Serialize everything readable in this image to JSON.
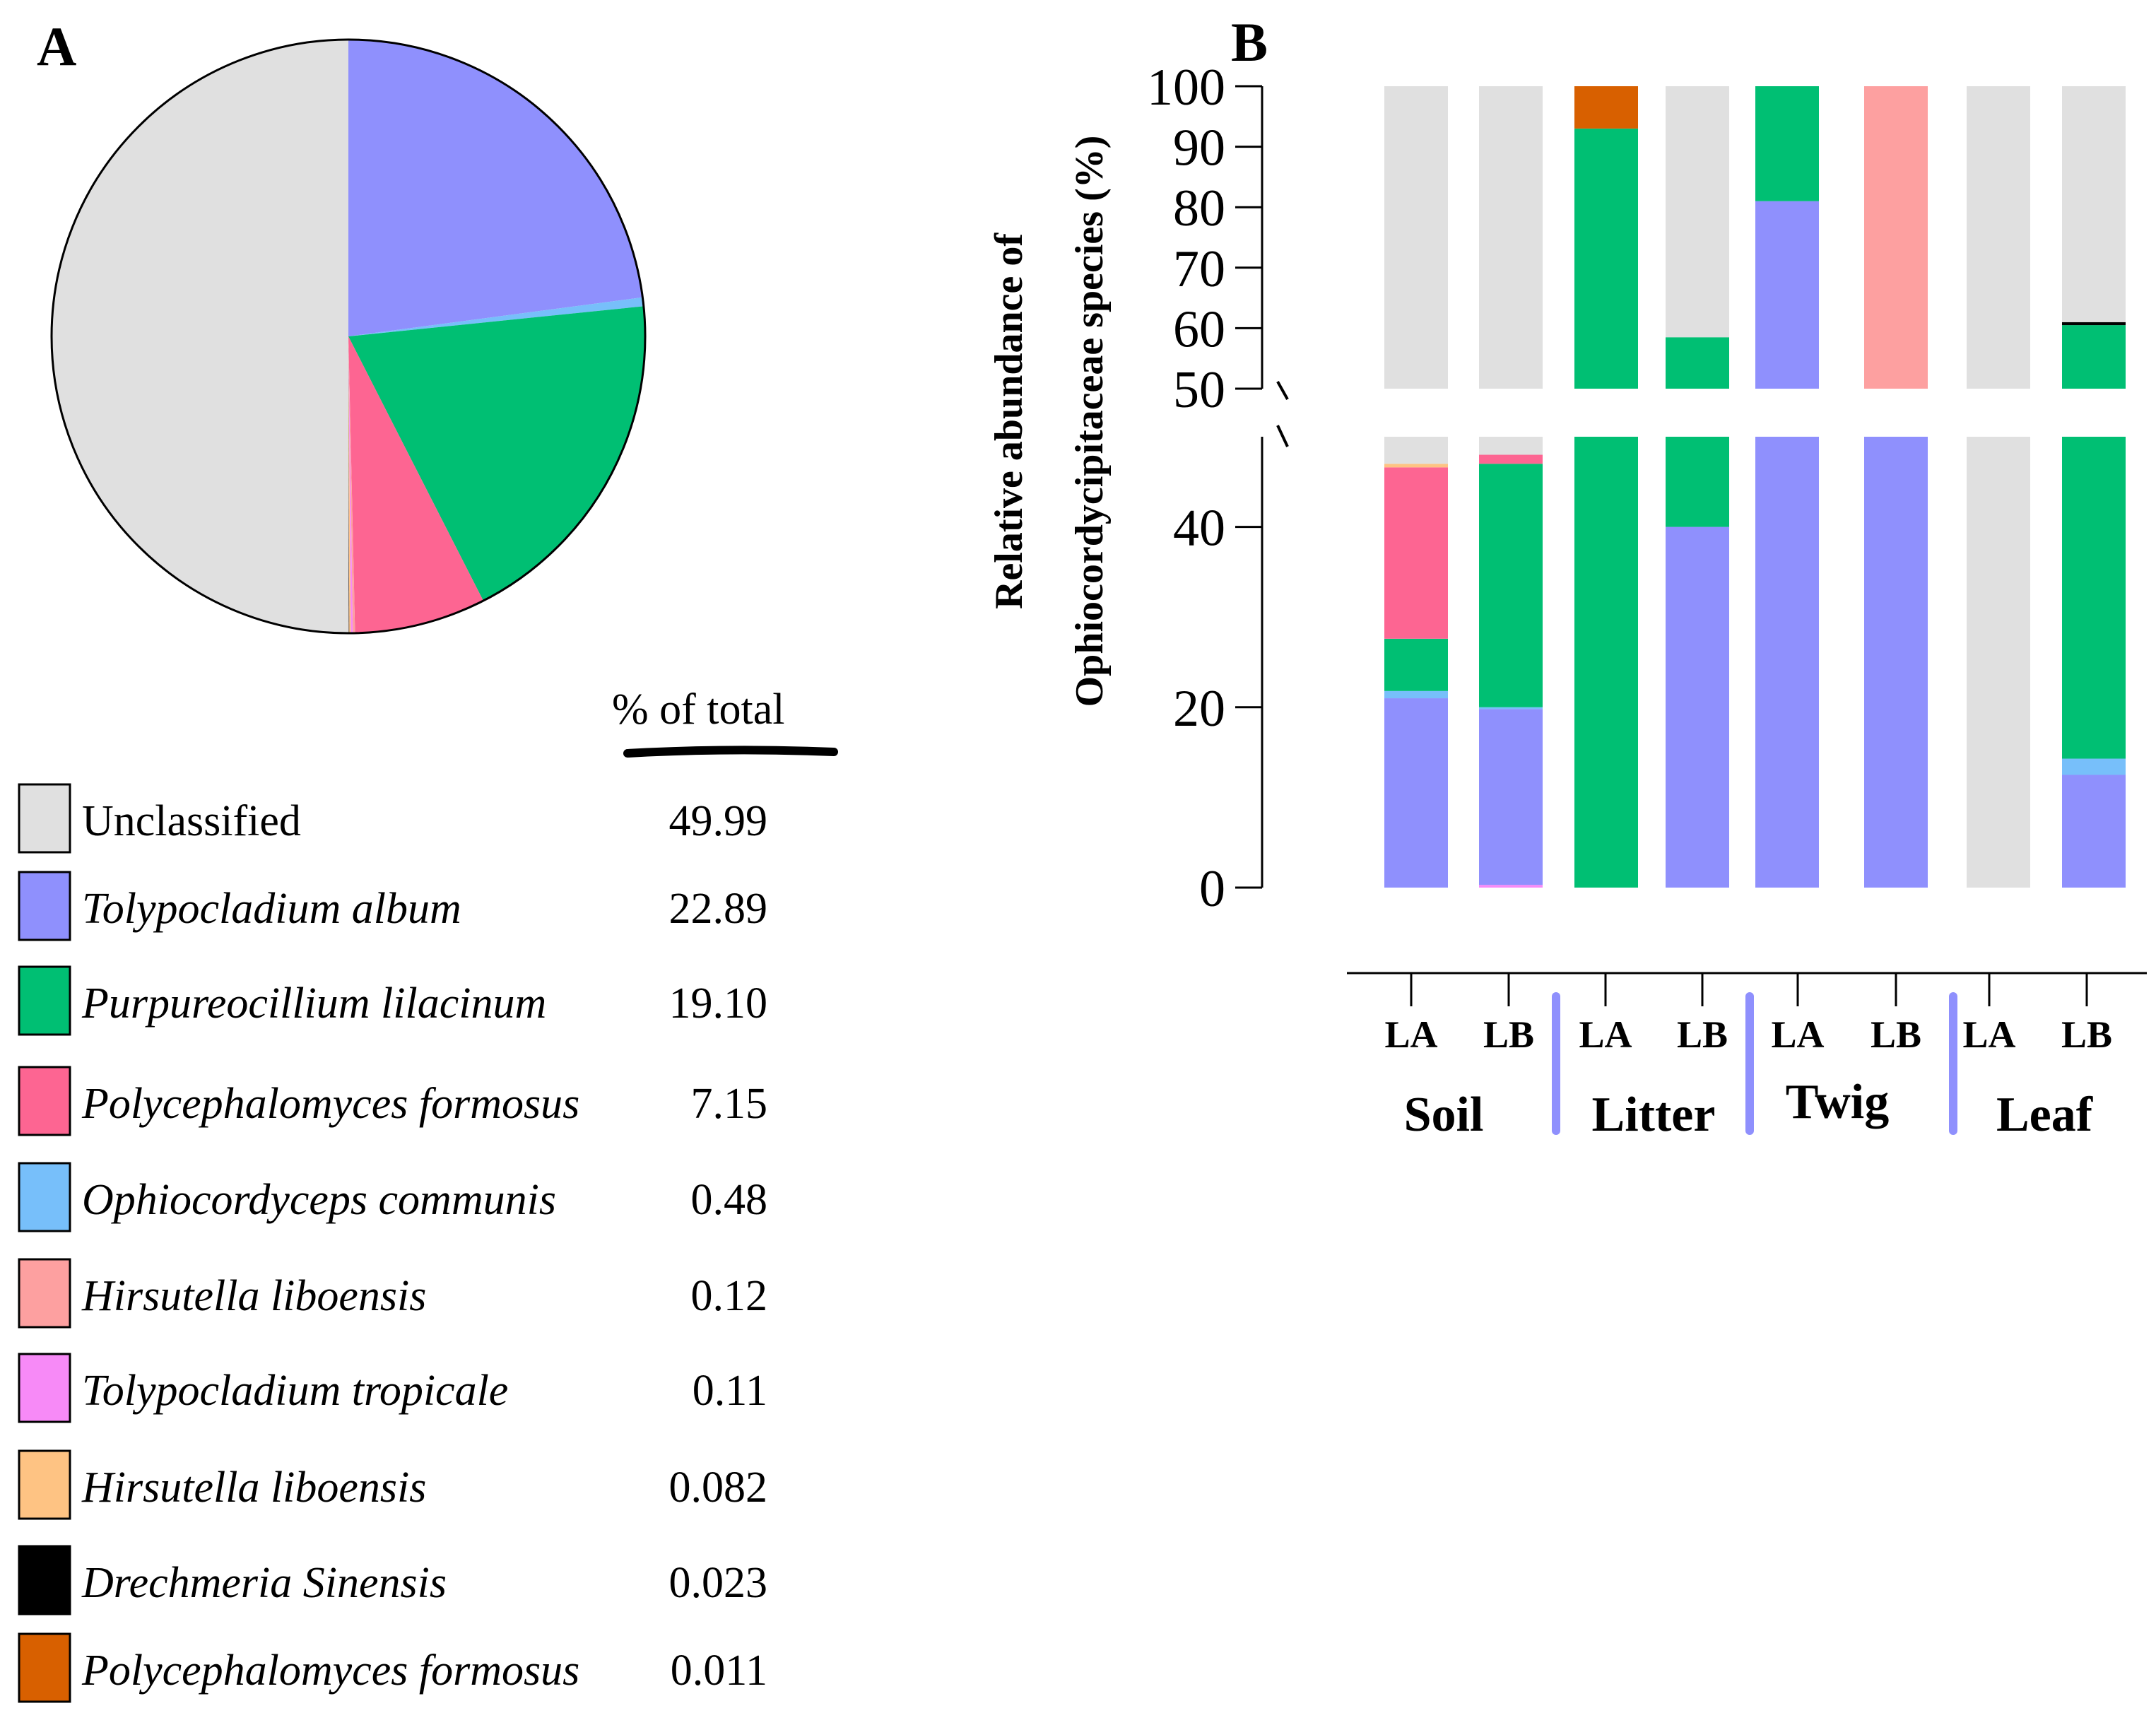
{
  "panels": {
    "a_label": "A",
    "b_label": "B"
  },
  "legend": {
    "header": "% of  total",
    "items": [
      {
        "name": "Unclassified",
        "italic": false,
        "value": "49.99",
        "color": "#e0e0e0"
      },
      {
        "name": "Tolypocladium album",
        "italic": true,
        "value": "22.89",
        "color": "#8f90fd"
      },
      {
        "name": "Purpureocillium lilacinum",
        "italic": true,
        "value": "19.10",
        "color": "#00bf73"
      },
      {
        "name": "Polycephalomyces formosus",
        "italic": true,
        "value": "7.15",
        "color": "#fd6592"
      },
      {
        "name": "Ophiocordyceps communis",
        "italic": true,
        "value": "0.48",
        "color": "#77bffa"
      },
      {
        "name": "Hirsutella liboensis",
        "italic": true,
        "value": "0.12",
        "color": "#fda0a0"
      },
      {
        "name": "Tolypocladium tropicale",
        "italic": true,
        "value": "0.11",
        "color": "#f78af7"
      },
      {
        "name": "Hirsutella liboensis",
        "italic": true,
        "value": "0.082",
        "color": "#fec383"
      },
      {
        "name": "Drechmeria Sinensis",
        "italic": true,
        "value": "0.023",
        "color": "#000000"
      },
      {
        "name": "Polycephalomyces formosus",
        "italic": true,
        "value": "0.011",
        "color": "#d86000"
      }
    ]
  },
  "chart_data": [
    {
      "type": "pie",
      "panel": "A",
      "slices": [
        {
          "label": "Tolypocladium album",
          "value": 22.89,
          "color": "#8f90fd"
        },
        {
          "label": "Ophiocordyceps communis",
          "value": 0.48,
          "color": "#77bffa"
        },
        {
          "label": "Purpureocillium lilacinum",
          "value": 19.1,
          "color": "#00bf73"
        },
        {
          "label": "Polycephalomyces formosus",
          "value": 7.15,
          "color": "#fd6592"
        },
        {
          "label": "Hirsutella liboensis",
          "value": 0.12,
          "color": "#fda0a0"
        },
        {
          "label": "Tolypocladium tropicale",
          "value": 0.11,
          "color": "#f78af7"
        },
        {
          "label": "Hirsutella liboensis",
          "value": 0.082,
          "color": "#fec383"
        },
        {
          "label": "Drechmeria Sinensis",
          "value": 0.023,
          "color": "#000000"
        },
        {
          "label": "Polycephalomyces formosus",
          "value": 0.011,
          "color": "#d86000"
        },
        {
          "label": "Unclassified",
          "value": 49.99,
          "color": "#e0e0e0"
        }
      ]
    },
    {
      "type": "bar",
      "stacked": true,
      "panel": "B",
      "ylabel_line1": "Relative abundance of",
      "ylabel_line2": "Ophiocordycipitaceae species (%)",
      "y_break": [
        50,
        50
      ],
      "lower_ticks": [
        "0",
        "20",
        "40"
      ],
      "upper_ticks": [
        "50",
        "60",
        "70",
        "80",
        "90",
        "100"
      ],
      "ylim": [
        0,
        100
      ],
      "categories": [
        "LA",
        "LB",
        "LA",
        "LB",
        "LA",
        "LB",
        "LA",
        "LB"
      ],
      "groups": [
        {
          "name": "Soil",
          "categories": [
            0,
            1
          ]
        },
        {
          "name": "Litter",
          "categories": [
            2,
            3
          ]
        },
        {
          "name": "Twig",
          "categories": [
            4,
            5
          ]
        },
        {
          "name": "Leaf",
          "categories": [
            6,
            7
          ]
        }
      ],
      "stacks": [
        [
          {
            "species": "Tolypocladium album",
            "value": 21.0,
            "color": "#8f90fd"
          },
          {
            "species": "Ophiocordyceps communis",
            "value": 0.8,
            "color": "#77bffa"
          },
          {
            "species": "Purpureocillium lilacinum",
            "value": 5.8,
            "color": "#00bf73"
          },
          {
            "species": "Polycephalomyces formosus",
            "value": 19.0,
            "color": "#fd6592"
          },
          {
            "species": "Hirsutella liboensis",
            "value": 0.4,
            "color": "#fec383"
          },
          {
            "species": "Unclassified",
            "value": 53.0,
            "color": "#e0e0e0"
          }
        ],
        [
          {
            "species": "Tolypocladium tropicale",
            "value": 0.3,
            "color": "#f78af7"
          },
          {
            "species": "Tolypocladium album",
            "value": 19.5,
            "color": "#8f90fd"
          },
          {
            "species": "Ophiocordyceps communis",
            "value": 0.2,
            "color": "#77bffa"
          },
          {
            "species": "Purpureocillium lilacinum",
            "value": 27.0,
            "color": "#00bf73"
          },
          {
            "species": "Polycephalomyces formosus",
            "value": 1.0,
            "color": "#fd6592"
          },
          {
            "species": "Unclassified",
            "value": 52.0,
            "color": "#e0e0e0"
          }
        ],
        [
          {
            "species": "Purpureocillium lilacinum",
            "value": 93.0,
            "color": "#00bf73"
          },
          {
            "species": "Polycephalomyces formosus",
            "value": 7.0,
            "color": "#d86000"
          }
        ],
        [
          {
            "species": "Tolypocladium album",
            "value": 40.0,
            "color": "#8f90fd"
          },
          {
            "species": "Purpureocillium lilacinum",
            "value": 18.5,
            "color": "#00bf73"
          },
          {
            "species": "Unclassified",
            "value": 41.5,
            "color": "#e0e0e0"
          }
        ],
        [
          {
            "species": "Tolypocladium album",
            "value": 81.0,
            "color": "#8f90fd"
          },
          {
            "species": "Purpureocillium lilacinum",
            "value": 19.0,
            "color": "#00bf73"
          }
        ],
        [
          {
            "species": "Tolypocladium album",
            "value": 50.0,
            "color": "#8f90fd"
          },
          {
            "species": "Hirsutella liboensis",
            "value": 50.0,
            "color": "#fda0a0"
          }
        ],
        [
          {
            "species": "Unclassified",
            "value": 100.0,
            "color": "#e0e0e0"
          }
        ],
        [
          {
            "species": "Tolypocladium album",
            "value": 12.5,
            "color": "#8f90fd"
          },
          {
            "species": "Ophiocordyceps communis",
            "value": 1.8,
            "color": "#77bffa"
          },
          {
            "species": "Purpureocillium lilacinum",
            "value": 46.2,
            "color": "#00bf73"
          },
          {
            "species": "Drechmeria Sinensis",
            "value": 0.5,
            "color": "#000000"
          },
          {
            "species": "Unclassified",
            "value": 39.0,
            "color": "#e0e0e0"
          }
        ]
      ]
    }
  ]
}
